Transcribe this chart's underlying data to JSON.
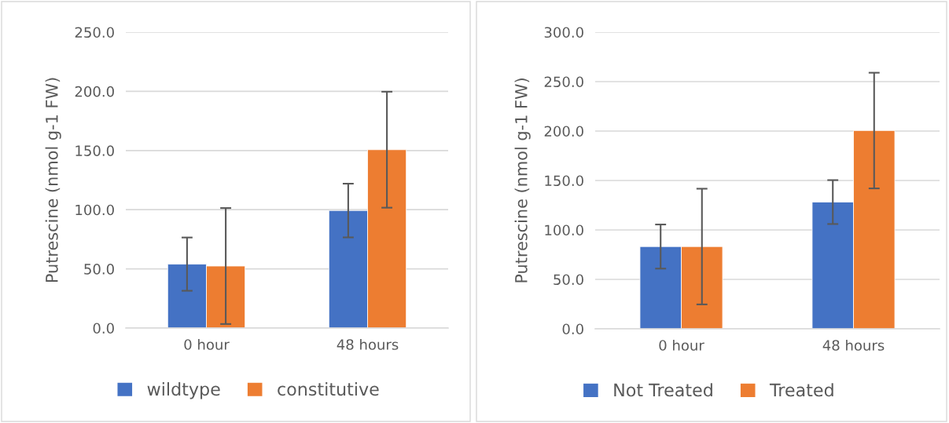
{
  "chart_data": [
    {
      "type": "bar",
      "ylabel": "Putrescine (nmol g-1 FW)",
      "categories": [
        "0 hour",
        "48 hours"
      ],
      "series": [
        {
          "name": "wildtype",
          "color": "#4472c4",
          "values": [
            54,
            99.3
          ],
          "errors": [
            22.5,
            22.7
          ]
        },
        {
          "name": "constitutive",
          "color": "#ed7d31",
          "values": [
            52.4,
            150.7
          ],
          "errors": [
            49,
            49
          ]
        }
      ],
      "ylim": [
        0,
        250
      ],
      "yticks": [
        {
          "value": 0,
          "label": "0.0"
        },
        {
          "value": 50,
          "label": "50.0"
        },
        {
          "value": 100,
          "label": "100.0"
        },
        {
          "value": 150,
          "label": "150.0"
        },
        {
          "value": 200,
          "label": "200.0"
        },
        {
          "value": 250,
          "label": "250.0"
        }
      ],
      "grid": "y",
      "legend": "bottom"
    },
    {
      "type": "bar",
      "ylabel": "Putrescine (nmol g-1 FW)",
      "categories": [
        "0 hour",
        "48 hours"
      ],
      "series": [
        {
          "name": "Not Treated",
          "color": "#4472c4",
          "values": [
            83.2,
            128.2
          ],
          "errors": [
            22.3,
            22.2
          ]
        },
        {
          "name": "Treated",
          "color": "#ed7d31",
          "values": [
            83.2,
            200.5
          ],
          "errors": [
            58.5,
            58.5
          ]
        }
      ],
      "ylim": [
        0,
        300
      ],
      "yticks": [
        {
          "value": 0,
          "label": "0.0"
        },
        {
          "value": 50,
          "label": "50.0"
        },
        {
          "value": 100,
          "label": "100.0"
        },
        {
          "value": 150,
          "label": "150.0"
        },
        {
          "value": 200,
          "label": "200.0"
        },
        {
          "value": 250,
          "label": "250.0"
        },
        {
          "value": 300,
          "label": "300.0"
        }
      ],
      "grid": "y",
      "legend": "bottom"
    }
  ]
}
